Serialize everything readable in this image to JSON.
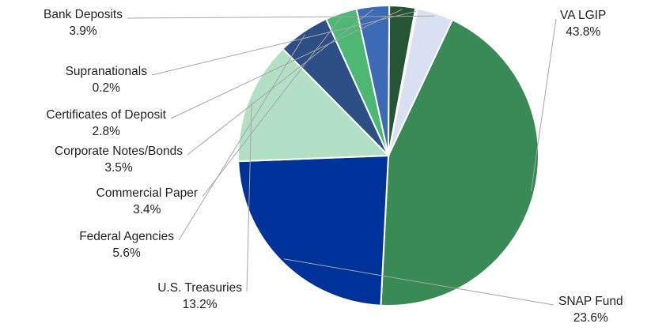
{
  "chart_data": {
    "type": "pie",
    "title": "",
    "slices": [
      {
        "label": "VA LGIP",
        "value": 43.8,
        "value_label": "43.8%",
        "color": "#3a8a55"
      },
      {
        "label": "SNAP Fund",
        "value": 23.6,
        "value_label": "23.6%",
        "color": "#003399"
      },
      {
        "label": "U.S. Treasuries",
        "value": 13.2,
        "value_label": "13.2%",
        "color": "#b3dfc4"
      },
      {
        "label": "Federal Agencies",
        "value": 5.6,
        "value_label": "5.6%",
        "color": "#2e4f85"
      },
      {
        "label": "Commercial Paper",
        "value": 3.4,
        "value_label": "3.4%",
        "color": "#4cb874"
      },
      {
        "label": "Corporate Notes/Bonds",
        "value": 3.5,
        "value_label": "3.5%",
        "color": "#3d6ab5"
      },
      {
        "label": "Certificates of Deposit",
        "value": 2.8,
        "value_label": "2.8%",
        "color": "#255535"
      },
      {
        "label": "Supranationals",
        "value": 0.2,
        "value_label": "0.2%",
        "color": "#8fbf9f"
      },
      {
        "label": "Bank Deposits",
        "value": 3.9,
        "value_label": "3.9%",
        "color": "#d9e0f0"
      }
    ]
  }
}
